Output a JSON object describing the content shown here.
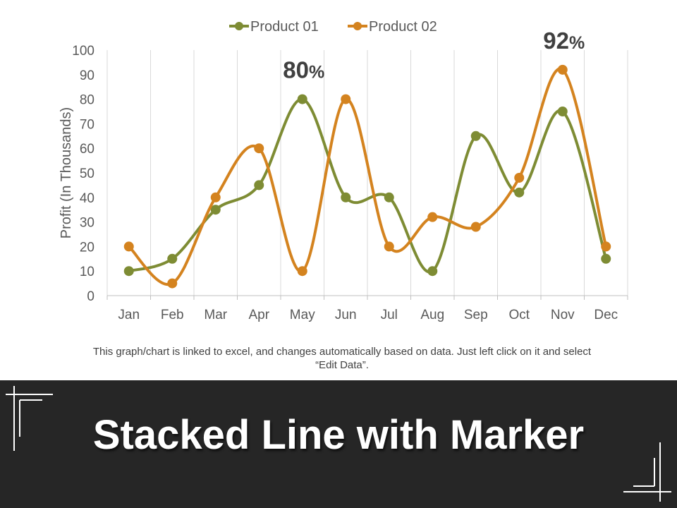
{
  "chart_data": {
    "type": "line",
    "categories": [
      "Jan",
      "Feb",
      "Mar",
      "Apr",
      "May",
      "Jun",
      "Jul",
      "Aug",
      "Sep",
      "Oct",
      "Nov",
      "Dec"
    ],
    "series": [
      {
        "name": "Product 01",
        "color": "#7e8c34",
        "values": [
          10,
          15,
          35,
          45,
          80,
          40,
          40,
          10,
          65,
          42,
          75,
          15
        ]
      },
      {
        "name": "Product 02",
        "color": "#d4831f",
        "values": [
          20,
          5,
          40,
          60,
          10,
          80,
          20,
          32,
          28,
          48,
          92,
          20
        ]
      }
    ],
    "ylabel": "Profit (In Thousands)",
    "ylim": [
      0,
      100
    ],
    "yticks": [
      0,
      10,
      20,
      30,
      40,
      50,
      60,
      70,
      80,
      90,
      100
    ],
    "legend_position": "top",
    "grid": "vertical",
    "annotations": [
      {
        "text": "80%",
        "category": "May",
        "value": 80
      },
      {
        "text": "92%",
        "category": "Nov",
        "value": 92
      }
    ]
  },
  "note": "This graph/chart is linked to excel, and changes automatically based on data. Just left click on it and select “Edit Data”.",
  "banner": {
    "title": "Stacked Line with Marker",
    "background": "#262626"
  }
}
